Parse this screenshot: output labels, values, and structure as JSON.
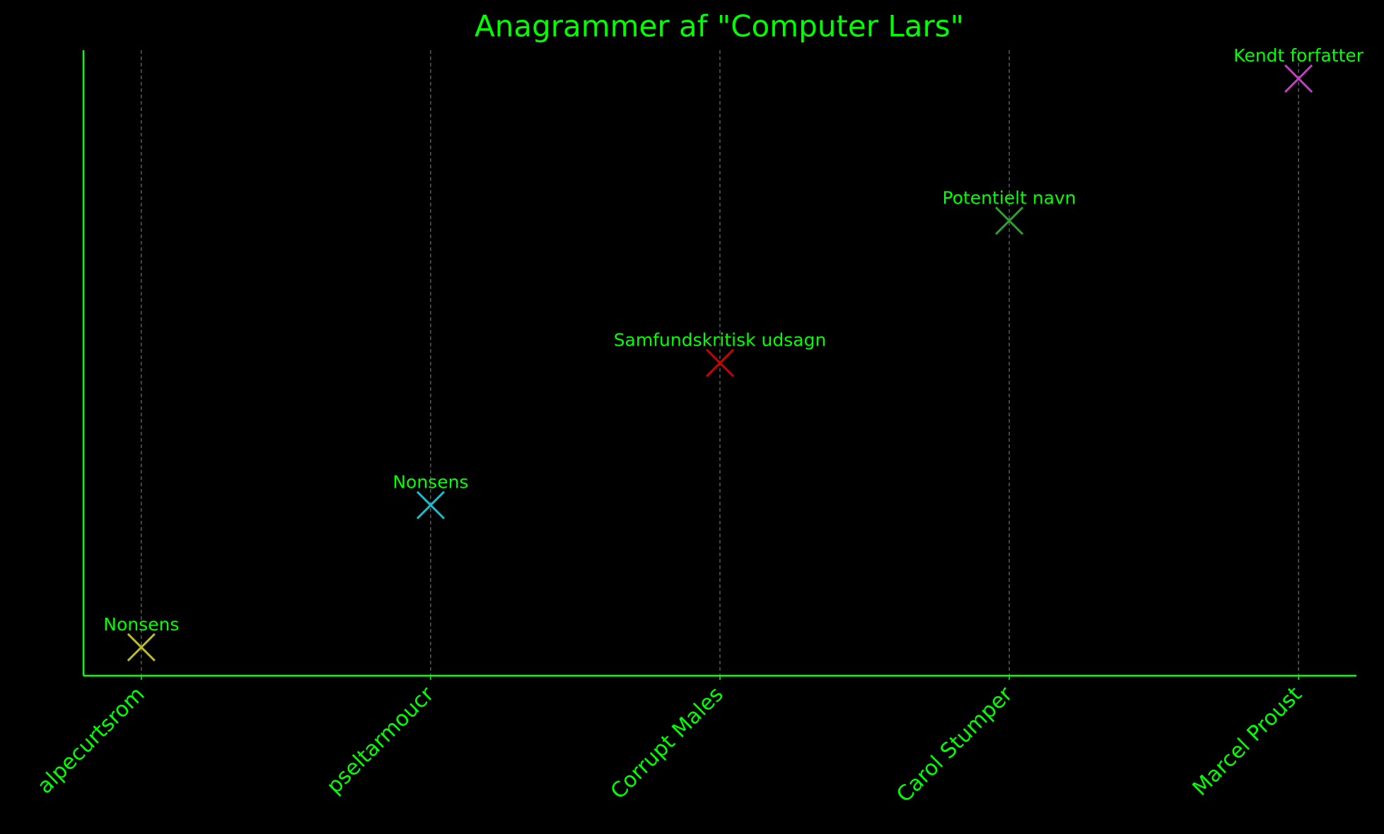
{
  "chart_data": {
    "type": "scatter",
    "title": "Anagrammer af \"Computer Lars\"",
    "categories": [
      "alpecurtsrom",
      "pseltarmoucr",
      "Corrupt Males",
      "Carol Stumper",
      "Marcel Proust"
    ],
    "values": [
      1,
      2,
      3,
      4,
      5
    ],
    "labels": [
      "Nonsens",
      "Nonsens",
      "Samfundskritisk udsagn",
      "Potentielt navn",
      "Kendt forfatter"
    ],
    "colors": [
      "#bcbd22",
      "#17becf",
      "#cc0000",
      "#2ca02c",
      "#c040c0"
    ],
    "ylim": [
      0.8,
      5.2
    ],
    "grid": true,
    "text_color": "#00ff00"
  }
}
